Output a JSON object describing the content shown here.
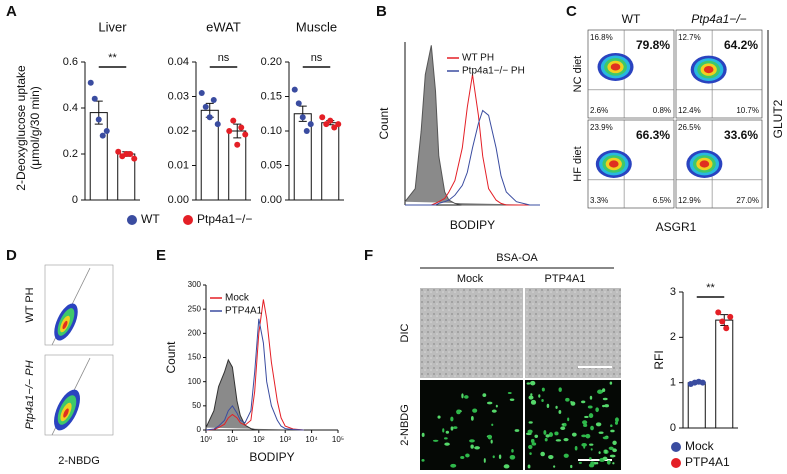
{
  "panel_labels": [
    "A",
    "B",
    "C",
    "D",
    "E",
    "F"
  ],
  "chart_data": [
    {
      "type": "bar",
      "title": "Liver",
      "ylabel": [
        "2-Deoxyglucose uptake",
        "(μmol/g/30 min)"
      ],
      "ylim": [
        0,
        0.6
      ],
      "yticks": [
        0,
        0.2,
        0.4,
        0.6
      ],
      "annotation": "**",
      "legend": "below",
      "series": [
        {
          "name": "WT",
          "color": "#3a4ca0",
          "values": [
            0.38
          ],
          "errors": [
            0.05
          ],
          "points": [
            0.51,
            0.44,
            0.35,
            0.28,
            0.3
          ]
        },
        {
          "name": "Ptp4a1−/−",
          "color": "#e41f26",
          "values": [
            0.2
          ],
          "errors": [
            0.01
          ],
          "points": [
            0.21,
            0.19,
            0.2,
            0.2,
            0.18
          ]
        }
      ]
    },
    {
      "type": "bar",
      "title": "eWAT",
      "ylim": [
        0,
        0.04
      ],
      "yticks": [
        {
          "value": 0,
          "label": "0.00"
        },
        0.01,
        0.02,
        0.03,
        0.04
      ],
      "annotation": "ns",
      "series": [
        {
          "color": "#3a4ca0",
          "values": [
            0.026
          ],
          "errors": [
            0.002
          ],
          "points": [
            0.031,
            0.027,
            0.024,
            0.029,
            0.022
          ]
        },
        {
          "color": "#e41f26",
          "values": [
            0.02
          ],
          "errors": [
            0.002
          ],
          "points": [
            0.02,
            0.023,
            0.016,
            0.021,
            0.019
          ]
        }
      ]
    },
    {
      "type": "bar",
      "title": "Muscle",
      "ylim": [
        0,
        0.2
      ],
      "yticks": [
        {
          "value": 0,
          "label": "0.00"
        },
        0.05,
        {
          "value": 0.1,
          "label": "0.10"
        },
        0.15,
        {
          "value": 0.2,
          "label": "0.20"
        }
      ],
      "annotation": "ns",
      "series": [
        {
          "color": "#3a4ca0",
          "values": [
            0.125
          ],
          "errors": [
            0.011
          ],
          "points": [
            0.16,
            0.14,
            0.12,
            0.1,
            0.11
          ]
        },
        {
          "color": "#e41f26",
          "values": [
            0.112
          ],
          "errors": [
            0.003
          ],
          "points": [
            0.12,
            0.11,
            0.115,
            0.105,
            0.11
          ]
        }
      ]
    },
    {
      "type": "line",
      "xscale": "log",
      "xlabel": "BODIPY",
      "ylabel": "Count",
      "xlim": [
        1,
        10000
      ],
      "ylim": [
        0,
        100
      ],
      "legend": "upper right",
      "x": [
        1,
        2,
        3,
        4,
        6,
        8,
        10,
        15,
        20,
        30,
        50,
        70,
        100,
        150,
        200,
        300,
        500,
        700,
        1000,
        2000,
        5000,
        10000
      ],
      "series": [
        {
          "color": "#555555",
          "fill": "#8a8a8a",
          "values": [
            2,
            10,
            45,
            80,
            98,
            70,
            30,
            8,
            3,
            1,
            0,
            0,
            0,
            0,
            0,
            0,
            0,
            0,
            0,
            0,
            0,
            0
          ]
        },
        {
          "name": "WT PH",
          "color": "#e41f26",
          "values": [
            0,
            0,
            0,
            0,
            0,
            1,
            2,
            4,
            8,
            15,
            35,
            60,
            80,
            55,
            30,
            10,
            3,
            1,
            0,
            0,
            0,
            0
          ]
        },
        {
          "name": "Ptp4a1−/− PH",
          "color": "#3a4ca0",
          "values": [
            0,
            0,
            0,
            0,
            0,
            0,
            1,
            2,
            3,
            6,
            12,
            20,
            35,
            50,
            58,
            55,
            35,
            18,
            8,
            2,
            0,
            0
          ]
        }
      ]
    },
    {
      "type": "line",
      "xscale": "log",
      "xlabel": "BODIPY",
      "ylabel": "Count",
      "xlim": [
        1,
        100000
      ],
      "ylim": [
        0,
        300
      ],
      "legend": "upper left",
      "yticks": [
        0,
        50,
        100,
        150,
        200,
        250,
        300
      ],
      "xticks": [
        {
          "value": 1,
          "label": "10⁰"
        },
        {
          "value": 10,
          "label": "10¹"
        },
        {
          "value": 100,
          "label": "10²"
        },
        {
          "value": 1000,
          "label": "10³"
        },
        {
          "value": 10000,
          "label": "10⁴"
        },
        {
          "value": 100000,
          "label": "10⁵"
        }
      ],
      "x": [
        1,
        2,
        3,
        5,
        7,
        10,
        15,
        20,
        30,
        50,
        70,
        100,
        150,
        200,
        300,
        500,
        700,
        1000,
        2000,
        5000
      ],
      "series": [
        {
          "color": "#333333",
          "fill": "#8a8a8a",
          "values": [
            5,
            40,
            90,
            120,
            145,
            130,
            60,
            30,
            10,
            3,
            1,
            0,
            0,
            0,
            0,
            0,
            0,
            0,
            0,
            0
          ]
        },
        {
          "name": "Mock",
          "color": "#e41f26",
          "values": [
            0,
            1,
            5,
            12,
            25,
            32,
            25,
            15,
            10,
            20,
            80,
            200,
            270,
            230,
            140,
            60,
            25,
            8,
            2,
            0
          ]
        },
        {
          "name": "PTP4A1",
          "color": "#3a4ca0",
          "values": [
            0,
            2,
            8,
            20,
            40,
            50,
            35,
            20,
            15,
            40,
            120,
            230,
            180,
            100,
            50,
            20,
            8,
            3,
            1,
            0
          ]
        }
      ]
    },
    {
      "type": "bar",
      "ylabel": [
        "RFI"
      ],
      "ylim": [
        0,
        3
      ],
      "yticks": [
        0,
        1,
        2,
        3
      ],
      "annotation": "**",
      "legend": "below stacked",
      "series": [
        {
          "name": "Mock",
          "color": "#3a4ca0",
          "values": [
            1.0
          ],
          "errors": [
            0.02
          ],
          "points": [
            0.97,
            1.0,
            1.02,
            1.0
          ]
        },
        {
          "name": "PTP4A1",
          "color": "#e41f26",
          "values": [
            2.38
          ],
          "errors": [
            0.12
          ],
          "points": [
            2.55,
            2.35,
            2.2,
            2.45
          ]
        }
      ]
    }
  ],
  "panel_c": {
    "columns": [
      "WT",
      "Ptp4a1−/−"
    ],
    "rows": [
      "NC diet",
      "HF diet"
    ],
    "x_label": "ASGR1",
    "y_label": "GLUT2",
    "plots": [
      {
        "ul": "16.8%",
        "ur": "79.8%",
        "ll": "2.6%",
        "lr": "0.8%"
      },
      {
        "ul": "12.7%",
        "ur": "64.2%",
        "ll": "12.4%",
        "lr": "10.7%"
      },
      {
        "ul": "23.9%",
        "ur": "66.3%",
        "ll": "3.3%",
        "lr": "6.5%"
      },
      {
        "ul": "26.5%",
        "ur": "33.6%",
        "ll": "12.9%",
        "lr": "27.0%"
      }
    ]
  },
  "panel_d": {
    "rows": [
      "WT PH",
      "Ptp4a1−/− PH"
    ],
    "x_label": "2-NBDG"
  },
  "panel_f": {
    "treatment": "BSA-OA",
    "columns": [
      "Mock",
      "PTP4A1"
    ],
    "rows": [
      "DIC",
      "2-NBDG"
    ]
  }
}
